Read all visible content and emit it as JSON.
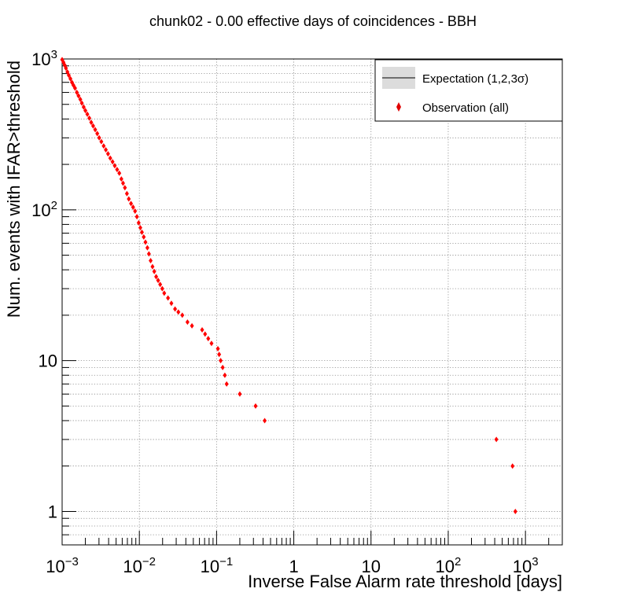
{
  "chart_data": {
    "type": "scatter",
    "title": "chunk02 - 0.00 effective days of coincidences - BBH",
    "xlabel": "Inverse False Alarm rate threshold [days]",
    "ylabel": "Num. events with IFAR>threshold",
    "xscale": "log",
    "yscale": "log",
    "xlim": [
      0.001,
      3000
    ],
    "ylim": [
      0.6,
      1000
    ],
    "grid": true,
    "legend_position": "top-right",
    "x_ticks": [
      {
        "value": 0.001,
        "base": "10",
        "exp": "−3"
      },
      {
        "value": 0.01,
        "base": "10",
        "exp": "−2"
      },
      {
        "value": 0.1,
        "base": "10",
        "exp": "−1"
      },
      {
        "value": 1,
        "base": "1",
        "exp": ""
      },
      {
        "value": 10,
        "base": "10",
        "exp": ""
      },
      {
        "value": 100,
        "base": "10",
        "exp": "2"
      },
      {
        "value": 1000,
        "base": "10",
        "exp": "3"
      }
    ],
    "y_ticks": [
      {
        "value": 1,
        "base": "1",
        "exp": ""
      },
      {
        "value": 10,
        "base": "10",
        "exp": ""
      },
      {
        "value": 100,
        "base": "10",
        "exp": "2"
      },
      {
        "value": 1000,
        "base": "10",
        "exp": "3"
      }
    ],
    "legend": [
      {
        "label": "Expectation (1,2,3σ)",
        "kind": "band-line"
      },
      {
        "label": "Observation (all)",
        "kind": "marker"
      }
    ],
    "series": [
      {
        "name": "Observation (all)",
        "color": "#ff0000",
        "marker": "diamond",
        "points": [
          [
            0.001,
            990
          ],
          [
            0.00104,
            950
          ],
          [
            0.00108,
            910
          ],
          [
            0.00112,
            870
          ],
          [
            0.00117,
            820
          ],
          [
            0.00122,
            780
          ],
          [
            0.00128,
            740
          ],
          [
            0.00134,
            700
          ],
          [
            0.0014,
            670
          ],
          [
            0.00147,
            640
          ],
          [
            0.00155,
            600
          ],
          [
            0.00163,
            570
          ],
          [
            0.00172,
            540
          ],
          [
            0.0018,
            510
          ],
          [
            0.0019,
            480
          ],
          [
            0.002,
            455
          ],
          [
            0.00212,
            430
          ],
          [
            0.00225,
            405
          ],
          [
            0.00238,
            380
          ],
          [
            0.00252,
            360
          ],
          [
            0.00268,
            340
          ],
          [
            0.00285,
            320
          ],
          [
            0.00302,
            300
          ],
          [
            0.00322,
            283
          ],
          [
            0.00345,
            265
          ],
          [
            0.00368,
            250
          ],
          [
            0.00393,
            235
          ],
          [
            0.0042,
            220
          ],
          [
            0.0045,
            208
          ],
          [
            0.0048,
            196
          ],
          [
            0.00515,
            185
          ],
          [
            0.0055,
            175
          ],
          [
            0.00585,
            160
          ],
          [
            0.00615,
            150
          ],
          [
            0.0065,
            140
          ],
          [
            0.0069,
            128
          ],
          [
            0.0073,
            118
          ],
          [
            0.0078,
            110
          ],
          [
            0.0083,
            104
          ],
          [
            0.0088,
            98
          ],
          [
            0.0093,
            90
          ],
          [
            0.0098,
            82
          ],
          [
            0.0103,
            76
          ],
          [
            0.0108,
            71
          ],
          [
            0.0114,
            66
          ],
          [
            0.012,
            61
          ],
          [
            0.0127,
            56
          ],
          [
            0.0133,
            51
          ],
          [
            0.014,
            46
          ],
          [
            0.0148,
            42
          ],
          [
            0.0156,
            39
          ],
          [
            0.0165,
            36
          ],
          [
            0.0175,
            34
          ],
          [
            0.0186,
            32
          ],
          [
            0.0198,
            30
          ],
          [
            0.021,
            28
          ],
          [
            0.0235,
            26
          ],
          [
            0.026,
            24
          ],
          [
            0.029,
            22
          ],
          [
            0.032,
            21
          ],
          [
            0.036,
            20
          ],
          [
            0.042,
            18
          ],
          [
            0.048,
            17
          ],
          [
            0.065,
            16
          ],
          [
            0.071,
            15
          ],
          [
            0.078,
            14
          ],
          [
            0.086,
            13
          ],
          [
            0.104,
            12
          ],
          [
            0.108,
            11
          ],
          [
            0.113,
            10
          ],
          [
            0.12,
            9
          ],
          [
            0.128,
            8
          ],
          [
            0.135,
            7
          ],
          [
            0.2,
            6
          ],
          [
            0.32,
            5
          ],
          [
            0.42,
            4
          ],
          [
            420,
            3
          ],
          [
            680,
            2
          ],
          [
            740,
            1
          ]
        ]
      }
    ]
  }
}
